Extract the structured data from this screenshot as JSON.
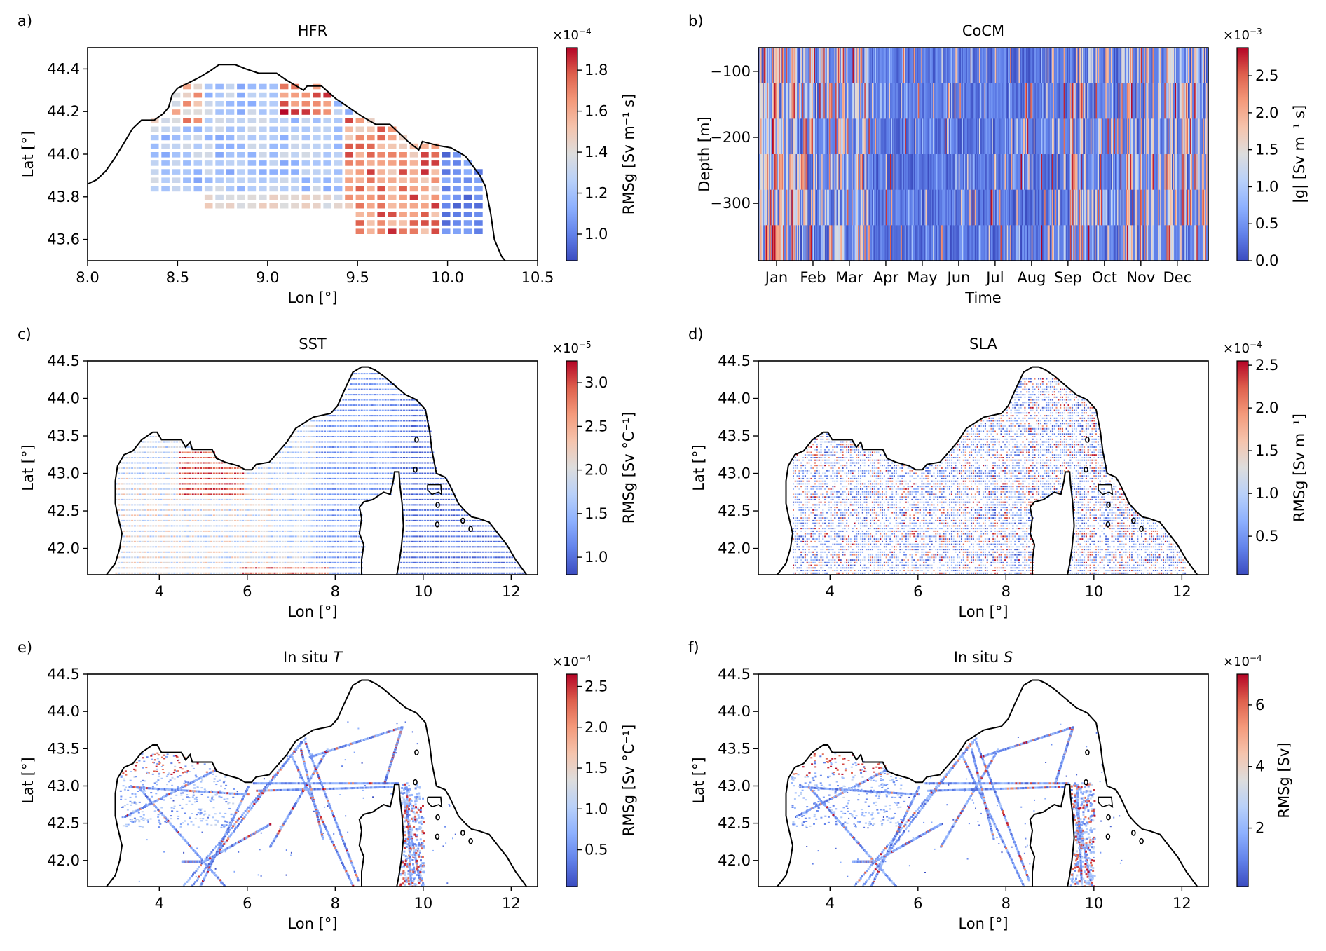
{
  "figure": {
    "panels": [
      {
        "id": "a",
        "label": "a)",
        "title": "HFR",
        "cb_exponent": "×10",
        "cb_power": "−4"
      },
      {
        "id": "b",
        "label": "b)",
        "title": "CoCM",
        "cb_exponent": "×10",
        "cb_power": "−3"
      },
      {
        "id": "c",
        "label": "c)",
        "title": "SST",
        "cb_exponent": "×10",
        "cb_power": "−5"
      },
      {
        "id": "d",
        "label": "d)",
        "title": "SLA",
        "cb_exponent": "×10",
        "cb_power": "−4"
      },
      {
        "id": "e",
        "label": "e)",
        "title": "In situ T",
        "cb_exponent": "×10",
        "cb_power": "−4"
      },
      {
        "id": "f",
        "label": "f)",
        "title": "In situ S",
        "cb_exponent": "×10",
        "cb_power": "−4"
      }
    ]
  },
  "chart_data": [
    {
      "id": "a",
      "type": "heatmap",
      "title": "HFR",
      "xlabel": "Lon [°]",
      "ylabel": "Lat [°]",
      "xlim": [
        8.0,
        10.5
      ],
      "ylim": [
        43.5,
        44.5
      ],
      "xticks": [
        8.0,
        8.5,
        9.0,
        9.5,
        10.0,
        10.5
      ],
      "xtick_labels": [
        "8.0",
        "8.5",
        "9.0",
        "9.5",
        "10.0",
        "10.5"
      ],
      "yticks": [
        43.6,
        43.8,
        44.0,
        44.2,
        44.4
      ],
      "ytick_labels": [
        "43.6",
        "43.8",
        "44.0",
        "44.2",
        "44.4"
      ],
      "colorbar": {
        "label": "RMSg [Sv m⁻¹ s]",
        "range": [
          0.87,
          1.91
        ],
        "ticks": [
          1.0,
          1.2,
          1.4,
          1.6,
          1.8
        ],
        "tick_labels": [
          "1.0",
          "1.2",
          "1.4",
          "1.6",
          "1.8"
        ],
        "scale": "×10⁻⁴",
        "cmap": "coolwarm"
      },
      "coastline": [
        [
          8.0,
          43.86
        ],
        [
          8.05,
          43.88
        ],
        [
          8.1,
          43.92
        ],
        [
          8.15,
          43.98
        ],
        [
          8.2,
          44.05
        ],
        [
          8.25,
          44.12
        ],
        [
          8.3,
          44.16
        ],
        [
          8.37,
          44.16
        ],
        [
          8.42,
          44.19
        ],
        [
          8.45,
          44.22
        ],
        [
          8.47,
          44.28
        ],
        [
          8.5,
          44.31
        ],
        [
          8.55,
          44.33
        ],
        [
          8.62,
          44.36
        ],
        [
          8.68,
          44.39
        ],
        [
          8.73,
          44.42
        ],
        [
          8.82,
          44.42
        ],
        [
          8.88,
          44.4
        ],
        [
          8.95,
          44.38
        ],
        [
          9.05,
          44.38
        ],
        [
          9.1,
          44.35
        ],
        [
          9.2,
          44.3
        ],
        [
          9.22,
          44.32
        ],
        [
          9.3,
          44.32
        ],
        [
          9.38,
          44.26
        ],
        [
          9.45,
          44.22
        ],
        [
          9.52,
          44.18
        ],
        [
          9.6,
          44.14
        ],
        [
          9.68,
          44.14
        ],
        [
          9.78,
          44.06
        ],
        [
          9.84,
          44.02
        ],
        [
          9.86,
          44.06
        ],
        [
          9.95,
          44.04
        ],
        [
          10.02,
          44.03
        ],
        [
          10.1,
          43.99
        ],
        [
          10.18,
          43.9
        ],
        [
          10.21,
          43.85
        ],
        [
          10.24,
          43.72
        ],
        [
          10.26,
          43.6
        ],
        [
          10.3,
          43.52
        ],
        [
          10.32,
          43.5
        ]
      ],
      "note": "gridded RMSg values on ~0.06° cells; high (red) cluster around 9.0–9.3E/44.2–44.3N and 9.4–9.8E/43.7–44.1N; low (blue) near 10.0–10.2E"
    },
    {
      "id": "b",
      "type": "heatmap",
      "title": "CoCM",
      "xlabel": "Time",
      "ylabel": "Depth [m]",
      "x_categories": [
        "Jan",
        "Feb",
        "Mar",
        "Apr",
        "May",
        "Jun",
        "Jul",
        "Aug",
        "Sep",
        "Oct",
        "Nov",
        "Dec"
      ],
      "ylim": [
        -387,
        -64
      ],
      "yticks": [
        -100,
        -200,
        -300
      ],
      "ytick_labels": [
        "−100",
        "−200",
        "−300"
      ],
      "colorbar": {
        "label": "|g| [Sv m⁻¹ s]",
        "range": [
          0.0,
          2.88
        ],
        "ticks": [
          0.0,
          0.5,
          1.0,
          1.5,
          2.0,
          2.5
        ],
        "tick_labels": [
          "0.0",
          "0.5",
          "1.0",
          "1.5",
          "2.0",
          "2.5"
        ],
        "scale": "×10⁻³",
        "cmap": "coolwarm"
      },
      "monthly_activity": [
        0.85,
        0.6,
        0.65,
        0.1,
        0.08,
        0.12,
        0.1,
        0.15,
        0.55,
        0.35,
        0.75,
        0.65
      ],
      "note": "vertical stripes per time step; high values in Dec–Mar and Sep–Dec, low in Apr–Aug"
    },
    {
      "id": "c",
      "type": "heatmap",
      "title": "SST",
      "xlabel": "Lon [°]",
      "ylabel": "Lat [°]",
      "xlim": [
        2.37,
        12.6
      ],
      "ylim": [
        41.65,
        44.5
      ],
      "xticks": [
        4,
        6,
        8,
        10,
        12
      ],
      "xtick_labels": [
        "4",
        "6",
        "8",
        "10",
        "12"
      ],
      "yticks": [
        42.0,
        42.5,
        43.0,
        43.5,
        44.0,
        44.5
      ],
      "ytick_labels": [
        "42.0",
        "42.5",
        "43.0",
        "43.5",
        "44.0",
        "44.5"
      ],
      "colorbar": {
        "label": "RMSg [Sv °C⁻¹]",
        "range": [
          0.8,
          3.25
        ],
        "ticks": [
          1.0,
          1.5,
          2.0,
          2.5,
          3.0
        ],
        "tick_labels": [
          "1.0",
          "1.5",
          "2.0",
          "2.5",
          "3.0"
        ],
        "scale": "×10⁻⁵",
        "cmap": "coolwarm"
      },
      "note": "high (red) in Gulf of Lion 4.5–5.8E/42.7–43.3N and along southern edge 6–7.5E; low (blue) east of Corsica"
    },
    {
      "id": "d",
      "type": "heatmap",
      "title": "SLA",
      "xlabel": "Lon [°]",
      "ylabel": "Lat [°]",
      "xlim": [
        2.37,
        12.6
      ],
      "ylim": [
        41.65,
        44.5
      ],
      "xticks": [
        4,
        6,
        8,
        10,
        12
      ],
      "xtick_labels": [
        "4",
        "6",
        "8",
        "10",
        "12"
      ],
      "yticks": [
        42.0,
        42.5,
        43.0,
        43.5,
        44.0,
        44.5
      ],
      "ytick_labels": [
        "42.0",
        "42.5",
        "43.0",
        "43.5",
        "44.0",
        "44.5"
      ],
      "colorbar": {
        "label": "RMSg [Sv m⁻¹]",
        "range": [
          0.05,
          2.55
        ],
        "ticks": [
          0.5,
          1.0,
          1.5,
          2.0,
          2.5
        ],
        "tick_labels": [
          "0.5",
          "1.0",
          "1.5",
          "2.0",
          "2.5"
        ],
        "scale": "×10⁻⁴",
        "cmap": "coolwarm"
      },
      "note": "noisy mixed field with along-track striping"
    },
    {
      "id": "e",
      "type": "heatmap",
      "title": "In situ T",
      "xlabel": "Lon [°]",
      "ylabel": "Lat [°]",
      "xlim": [
        2.37,
        12.6
      ],
      "ylim": [
        41.65,
        44.5
      ],
      "xticks": [
        4,
        6,
        8,
        10,
        12
      ],
      "xtick_labels": [
        "4",
        "6",
        "8",
        "10",
        "12"
      ],
      "yticks": [
        42.0,
        42.5,
        43.0,
        43.5,
        44.0,
        44.5
      ],
      "ytick_labels": [
        "42.0",
        "42.5",
        "43.0",
        "43.5",
        "44.0",
        "44.5"
      ],
      "colorbar": {
        "label": "RMSg [Sv °C⁻¹]",
        "range": [
          0.05,
          2.65
        ],
        "ticks": [
          0.5,
          1.0,
          1.5,
          2.0,
          2.5
        ],
        "tick_labels": [
          "0.5",
          "1.0",
          "1.5",
          "2.0",
          "2.5"
        ],
        "scale": "×10⁻⁴",
        "cmap": "coolwarm"
      },
      "note": "values along ship/glider tracks; red along Gulf of Lion coast and Corsica Channel"
    },
    {
      "id": "f",
      "type": "heatmap",
      "title": "In situ S",
      "xlabel": "Lon [°]",
      "ylabel": "Lat [°]",
      "xlim": [
        2.37,
        12.6
      ],
      "ylim": [
        41.65,
        44.5
      ],
      "xticks": [
        4,
        6,
        8,
        10,
        12
      ],
      "xtick_labels": [
        "4",
        "6",
        "8",
        "10",
        "12"
      ],
      "yticks": [
        42.0,
        42.5,
        43.0,
        43.5,
        44.0,
        44.5
      ],
      "ytick_labels": [
        "42.0",
        "42.5",
        "43.0",
        "43.5",
        "44.0",
        "44.5"
      ],
      "colorbar": {
        "label": "RMSg [Sv]",
        "range": [
          0.1,
          7.0
        ],
        "ticks": [
          2,
          4,
          6
        ],
        "tick_labels": [
          "2",
          "4",
          "6"
        ],
        "scale": "×10⁻⁴",
        "cmap": "coolwarm"
      },
      "note": "values along ship/glider tracks; red concentrated in Gulf of Lion 3.8–5.2E/42.8–43.4N"
    }
  ],
  "basin": {
    "coast_main": [
      [
        2.8,
        41.65
      ],
      [
        3.0,
        41.8
      ],
      [
        3.1,
        42.0
      ],
      [
        3.15,
        42.2
      ],
      [
        3.05,
        42.45
      ],
      [
        3.0,
        42.6
      ],
      [
        3.0,
        42.9
      ],
      [
        3.05,
        43.1
      ],
      [
        3.2,
        43.25
      ],
      [
        3.4,
        43.3
      ],
      [
        3.6,
        43.45
      ],
      [
        3.85,
        43.55
      ],
      [
        3.95,
        43.55
      ],
      [
        4.05,
        43.45
      ],
      [
        4.5,
        43.45
      ],
      [
        4.6,
        43.35
      ],
      [
        4.7,
        43.42
      ],
      [
        4.75,
        43.32
      ],
      [
        5.2,
        43.32
      ],
      [
        5.3,
        43.2
      ],
      [
        5.5,
        43.15
      ],
      [
        5.8,
        43.1
      ],
      [
        5.95,
        43.05
      ],
      [
        6.1,
        43.05
      ],
      [
        6.2,
        43.12
      ],
      [
        6.5,
        43.15
      ],
      [
        6.9,
        43.42
      ],
      [
        7.1,
        43.6
      ],
      [
        7.5,
        43.75
      ],
      [
        7.9,
        43.8
      ],
      [
        8.05,
        43.9
      ],
      [
        8.2,
        44.1
      ],
      [
        8.4,
        44.35
      ],
      [
        8.6,
        44.42
      ],
      [
        8.75,
        44.42
      ],
      [
        8.9,
        44.38
      ],
      [
        9.1,
        44.3
      ],
      [
        9.3,
        44.2
      ],
      [
        9.6,
        44.05
      ],
      [
        9.85,
        43.98
      ],
      [
        10.05,
        43.85
      ],
      [
        10.15,
        43.55
      ],
      [
        10.2,
        43.3
      ],
      [
        10.3,
        43.0
      ],
      [
        10.5,
        42.95
      ],
      [
        10.6,
        42.85
      ],
      [
        10.8,
        42.6
      ],
      [
        10.95,
        42.5
      ],
      [
        11.1,
        42.42
      ],
      [
        11.25,
        42.4
      ],
      [
        11.5,
        42.35
      ],
      [
        11.7,
        42.2
      ],
      [
        11.9,
        42.05
      ],
      [
        12.1,
        41.85
      ],
      [
        12.35,
        41.65
      ]
    ],
    "corsica": [
      [
        8.6,
        41.65
      ],
      [
        8.6,
        41.85
      ],
      [
        8.65,
        42.05
      ],
      [
        8.55,
        42.2
      ],
      [
        8.6,
        42.4
      ],
      [
        8.55,
        42.55
      ],
      [
        8.65,
        42.62
      ],
      [
        8.85,
        42.65
      ],
      [
        9.1,
        42.75
      ],
      [
        9.25,
        42.72
      ],
      [
        9.32,
        42.9
      ],
      [
        9.35,
        43.02
      ],
      [
        9.45,
        43.02
      ],
      [
        9.47,
        42.85
      ],
      [
        9.52,
        42.6
      ],
      [
        9.55,
        42.3
      ],
      [
        9.5,
        42.0
      ],
      [
        9.45,
        41.8
      ],
      [
        9.4,
        41.65
      ]
    ]
  }
}
